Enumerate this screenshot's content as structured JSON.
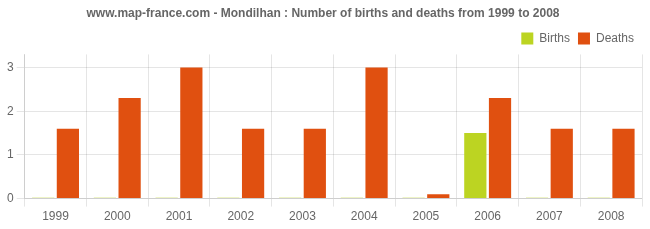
{
  "chart_data": {
    "type": "bar",
    "title": "www.map-france.com - Mondilhan : Number of births and deaths from 1999 to 2008",
    "categories": [
      "1999",
      "2000",
      "2001",
      "2002",
      "2003",
      "2004",
      "2005",
      "2006",
      "2007",
      "2008"
    ],
    "series": [
      {
        "name": "Births",
        "color": "#bcd422",
        "values": [
          0.02,
          0.02,
          0.02,
          0.02,
          0.02,
          0.02,
          0.02,
          1.5,
          0.02,
          0.02
        ]
      },
      {
        "name": "Deaths",
        "color": "#e05010",
        "values": [
          1.6,
          2.3,
          3.0,
          1.6,
          1.6,
          3.0,
          0.1,
          2.3,
          1.6,
          1.6
        ]
      }
    ],
    "ylim": [
      0,
      3.3
    ],
    "yticks": [
      0,
      1,
      2,
      3
    ],
    "grid": true,
    "legend": "upper right"
  }
}
